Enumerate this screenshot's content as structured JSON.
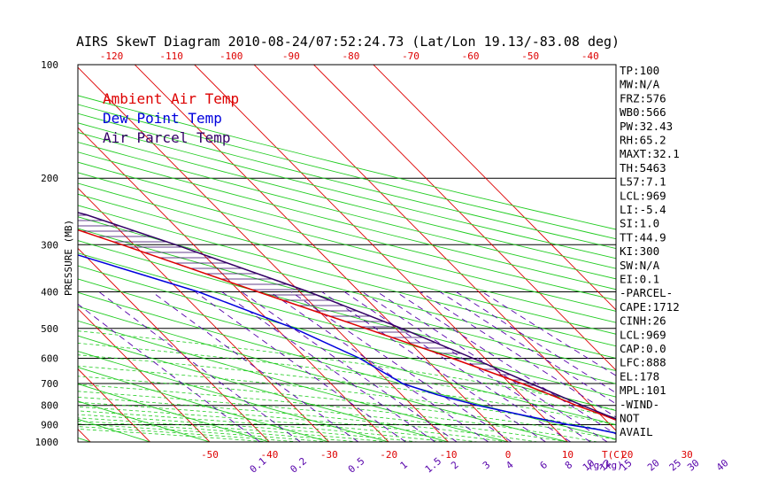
{
  "title": "AIRS SkewT Diagram 2010-08-24/07:52:24.73 (Lat/Lon 19.13/-83.08 deg)",
  "colors": {
    "ambient": "#dd0000",
    "dewpoint": "#0000dd",
    "parcel": "#330066",
    "dry_adiabat": "#22cc22",
    "isotherm": "#dd0000",
    "mixing_ratio": "#5500aa",
    "frame": "#000000"
  },
  "legend": [
    {
      "label": "Ambient Air Temp",
      "color": "#dd0000"
    },
    {
      "label": "Dew Point Temp",
      "color": "#0000dd"
    },
    {
      "label": "Air Parcel Temp",
      "color": "#330066"
    }
  ],
  "stats": [
    "TP:100",
    "MW:N/A",
    "FRZ:576",
    "WB0:566",
    "PW:32.43",
    "RH:65.2",
    "MAXT:32.1",
    "TH:5463",
    "L57:7.1",
    "LCL:969",
    "LI:-5.4",
    "SI:1.0",
    "TT:44.9",
    "KI:300",
    "SW:N/A",
    "EI:0.1",
    "-PARCEL-",
    "CAPE:1712",
    "CINH:26",
    "LCL:969",
    "CAP:0.0",
    "LFC:888",
    "EL:178",
    "MPL:101",
    "-WIND-",
    "NOT",
    "AVAIL"
  ],
  "chart_data": {
    "type": "line",
    "title": "AIRS SkewT Diagram 2010-08-24/07:52:24.73 (Lat/Lon 19.13/-83.08 deg)",
    "ylabel": "PRESSURE (MB)",
    "y_scale": "log",
    "ylim": [
      1000,
      100
    ],
    "y_ticks": [
      100,
      200,
      300,
      400,
      500,
      600,
      700,
      800,
      900,
      1000
    ],
    "x_bottom_label": "T(C)",
    "x_bottom_ticks": [
      -50,
      -40,
      -30,
      -20,
      -10,
      0,
      10,
      20,
      30
    ],
    "x_top_ticks": [
      -120,
      -110,
      -100,
      -90,
      -80,
      -70,
      -60,
      -50,
      -40
    ],
    "mixing_ratio_label": "(g/kg)",
    "mixing_ratio_ticks": [
      "0.1",
      "0.2",
      "0.5",
      "1",
      "1.5",
      "2",
      "3",
      "4",
      "6",
      "8",
      "10",
      "12",
      "15",
      "20",
      "25",
      "30",
      "40"
    ],
    "series": [
      {
        "name": "Ambient Air Temp",
        "color": "#dd0000",
        "points": [
          [
            1000,
            31.5
          ],
          [
            970,
            28
          ],
          [
            925,
            25
          ],
          [
            900,
            23
          ],
          [
            850,
            20.5
          ],
          [
            800,
            17.5
          ],
          [
            750,
            15
          ],
          [
            700,
            12
          ],
          [
            600,
            4.5
          ],
          [
            500,
            -5
          ],
          [
            400,
            -17
          ],
          [
            300,
            -32
          ],
          [
            250,
            -42
          ],
          [
            220,
            -49
          ],
          [
            200,
            -54
          ],
          [
            180,
            -60
          ],
          [
            160,
            -67
          ],
          [
            150,
            -71
          ],
          [
            130,
            -74
          ],
          [
            110,
            -75
          ],
          [
            100,
            -76
          ]
        ]
      },
      {
        "name": "Dew Point Temp",
        "color": "#0000dd",
        "points": [
          [
            1000,
            23.5
          ],
          [
            970,
            22
          ],
          [
            925,
            17
          ],
          [
            900,
            13
          ],
          [
            850,
            7
          ],
          [
            800,
            1
          ],
          [
            750,
            -4
          ],
          [
            700,
            -8
          ],
          [
            600,
            -11
          ],
          [
            500,
            -17
          ],
          [
            400,
            -27
          ],
          [
            300,
            -45
          ],
          [
            250,
            -58
          ],
          [
            220,
            -64
          ],
          [
            200,
            -69
          ],
          [
            180,
            -74
          ],
          [
            160,
            -77
          ],
          [
            150,
            -80
          ],
          [
            130,
            -86
          ],
          [
            110,
            -91
          ],
          [
            100,
            -92
          ]
        ]
      },
      {
        "name": "Air Parcel Temp",
        "color": "#330066",
        "points": [
          [
            1000,
            31.5
          ],
          [
            969,
            27
          ],
          [
            900,
            23.5
          ],
          [
            850,
            21
          ],
          [
            800,
            18.5
          ],
          [
            700,
            13.5
          ],
          [
            600,
            8
          ],
          [
            500,
            1
          ],
          [
            400,
            -8.5
          ],
          [
            300,
            -23
          ],
          [
            250,
            -33
          ],
          [
            220,
            -43
          ],
          [
            200,
            -50
          ],
          [
            180,
            -60
          ],
          [
            160,
            -68
          ],
          [
            150,
            -72
          ],
          [
            130,
            -80
          ],
          [
            110,
            -85
          ],
          [
            100,
            -87
          ]
        ]
      }
    ],
    "positive_area_hatched": true,
    "grid": true,
    "legend_position": "top-left"
  }
}
